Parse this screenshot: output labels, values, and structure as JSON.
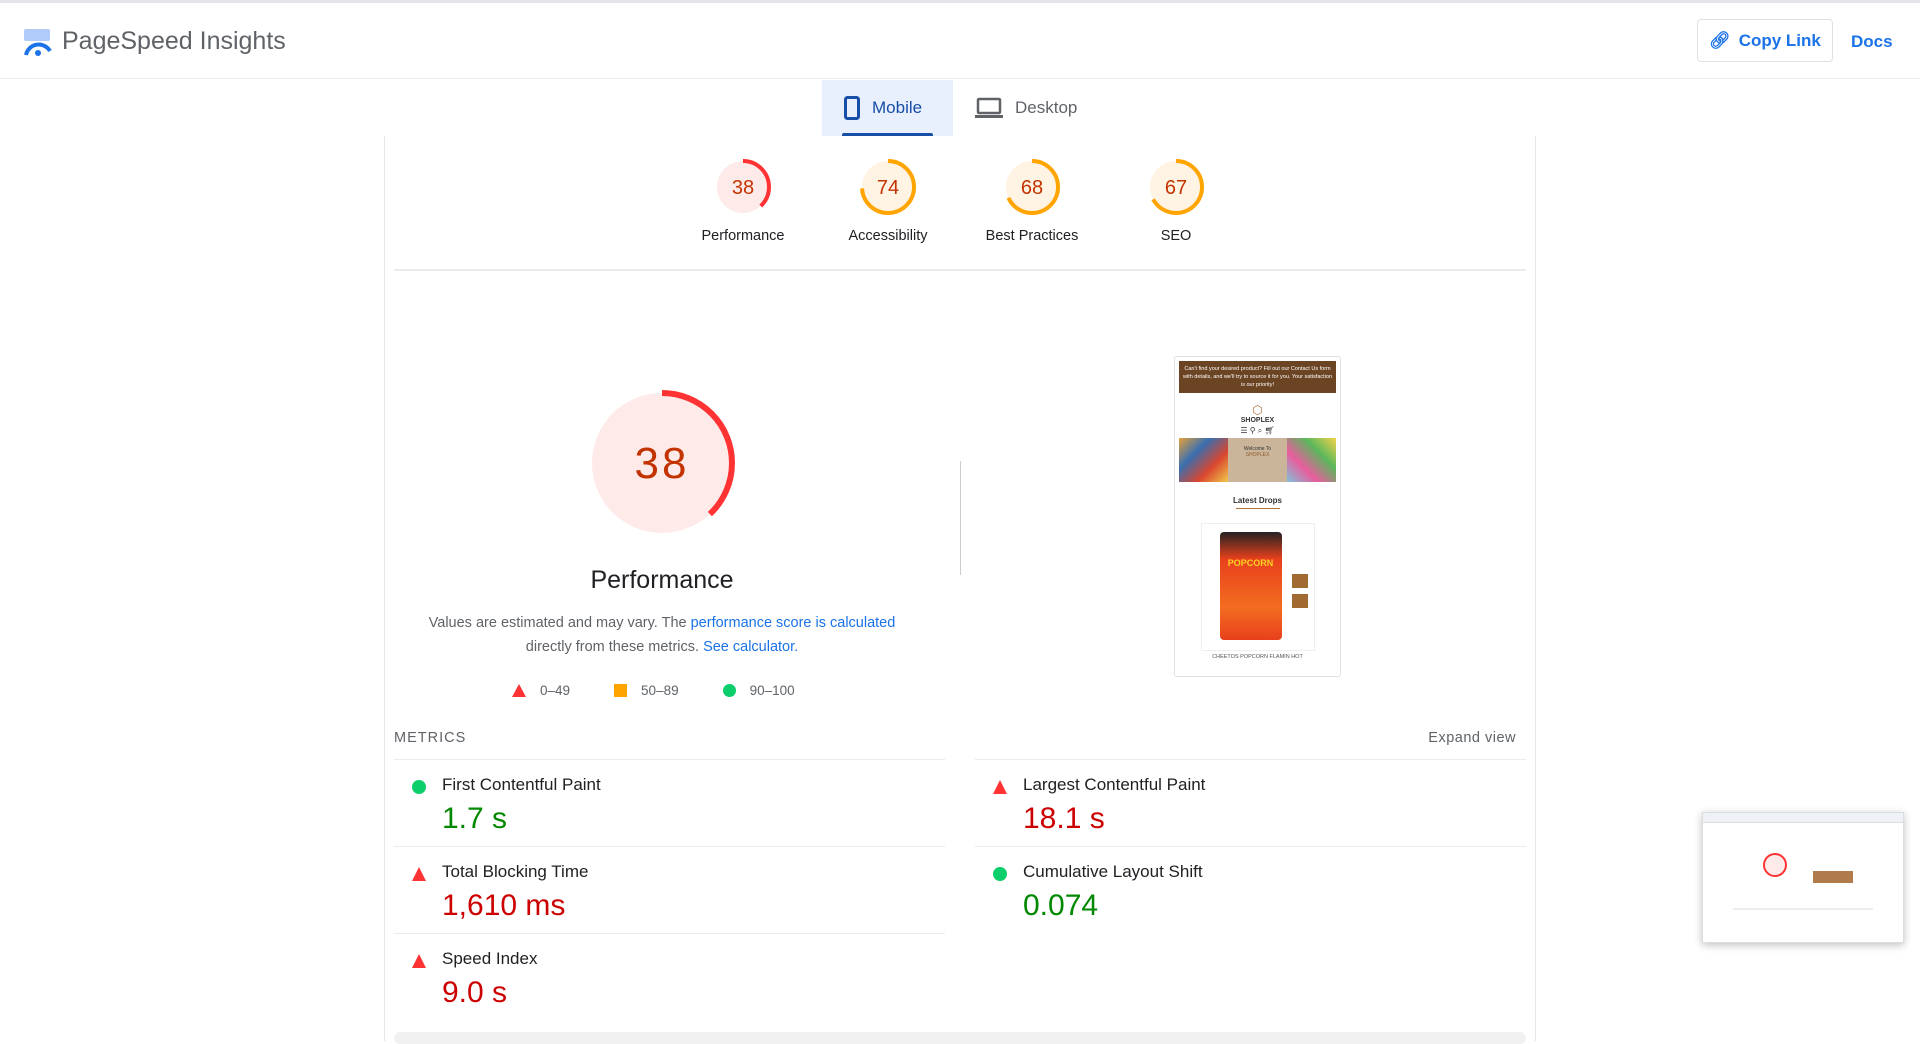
{
  "header": {
    "title": "PageSpeed Insights",
    "copy_link": "Copy Link",
    "docs": "Docs"
  },
  "tabs": [
    {
      "label": "Mobile",
      "icon": "smartphone-icon",
      "active": true
    },
    {
      "label": "Desktop",
      "icon": "laptop-icon",
      "active": false
    }
  ],
  "colors": {
    "fail": "#ff3333",
    "average": "#ffa400",
    "pass": "#0cce6b",
    "accent": "#1a73e8"
  },
  "scores": [
    {
      "label": "Performance",
      "score": 38,
      "rating": "fail"
    },
    {
      "label": "Accessibility",
      "score": 74,
      "rating": "average"
    },
    {
      "label": "Best Practices",
      "score": 68,
      "rating": "average"
    },
    {
      "label": "SEO",
      "score": 67,
      "rating": "average"
    }
  ],
  "performance": {
    "score": 38,
    "title": "Performance",
    "desc_1": "Values are estimated and may vary. The ",
    "desc_link_1": "performance score is calculated",
    "desc_2": "directly from these metrics. ",
    "desc_link_2": "See calculator."
  },
  "legend": [
    {
      "shape": "triangle",
      "range": "0–49"
    },
    {
      "shape": "square",
      "range": "50–89"
    },
    {
      "shape": "circle",
      "range": "90–100"
    }
  ],
  "screenshot": {
    "banner": "Can't find your desired product? Fill out our Contact Us form with details, and we'll try to source it for you. Your satisfaction is our priority!",
    "brand": "SHOPLEX",
    "welcome": "Welcome To",
    "welcome_brand": "SHOPLEX",
    "section": "Latest Drops",
    "product": "CHEETOS POPCORN FLAMIN HOT"
  },
  "metrics": {
    "heading": "METRICS",
    "expand": "Expand view",
    "items": [
      {
        "label": "First Contentful Paint",
        "value": "1.7 s",
        "rating": "pass"
      },
      {
        "label": "Largest Contentful Paint",
        "value": "18.1 s",
        "rating": "fail"
      },
      {
        "label": "Total Blocking Time",
        "value": "1,610 ms",
        "rating": "fail"
      },
      {
        "label": "Cumulative Layout Shift",
        "value": "0.074",
        "rating": "pass"
      },
      {
        "label": "Speed Index",
        "value": "9.0 s",
        "rating": "fail"
      }
    ]
  }
}
